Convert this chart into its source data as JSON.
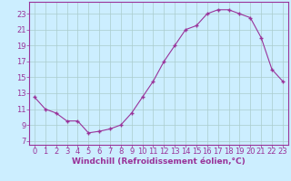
{
  "x": [
    0,
    1,
    2,
    3,
    4,
    5,
    6,
    7,
    8,
    9,
    10,
    11,
    12,
    13,
    14,
    15,
    16,
    17,
    18,
    19,
    20,
    21,
    22,
    23
  ],
  "y": [
    12.5,
    11.0,
    10.5,
    9.5,
    9.5,
    8.0,
    8.2,
    8.5,
    9.0,
    10.5,
    12.5,
    14.5,
    17.0,
    19.0,
    21.0,
    21.5,
    23.0,
    23.5,
    23.5,
    23.0,
    22.5,
    20.0,
    16.0,
    14.5
  ],
  "line_color": "#993399",
  "marker": "+",
  "bg_color": "#cceeff",
  "grid_color": "#aacccc",
  "xlabel": "Windchill (Refroidissement éolien,°C)",
  "xticks": [
    0,
    1,
    2,
    3,
    4,
    5,
    6,
    7,
    8,
    9,
    10,
    11,
    12,
    13,
    14,
    15,
    16,
    17,
    18,
    19,
    20,
    21,
    22,
    23
  ],
  "yticks": [
    7,
    9,
    11,
    13,
    15,
    17,
    19,
    21,
    23
  ],
  "ylim": [
    6.5,
    24.5
  ],
  "xlim": [
    -0.5,
    23.5
  ],
  "xlabel_color": "#993399",
  "tick_color": "#993399",
  "font_size": 6,
  "xlabel_fontsize": 6.5,
  "markersize": 3,
  "linewidth": 0.8
}
